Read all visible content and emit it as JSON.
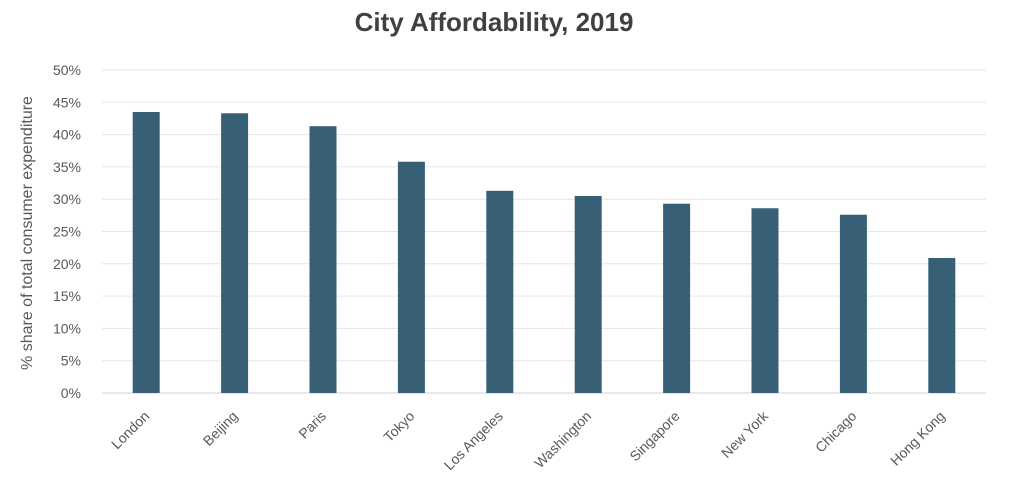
{
  "chart_data": {
    "type": "bar",
    "title": "City Affordability, 2019",
    "xlabel": "",
    "ylabel": "% share of total consumer expenditure",
    "categories": [
      "London",
      "Beijing",
      "Paris",
      "Tokyo",
      "Los Angeles",
      "Washington",
      "Singapore",
      "New York",
      "Chicago",
      "Hong Kong"
    ],
    "values": [
      43.5,
      43.3,
      41.3,
      35.8,
      31.3,
      30.5,
      29.3,
      28.6,
      27.6,
      20.9
    ],
    "y_ticks": [
      "0%",
      "5%",
      "10%",
      "15%",
      "20%",
      "25%",
      "30%",
      "35%",
      "40%",
      "45%",
      "50%"
    ],
    "ylim": [
      0,
      50
    ],
    "grid": true,
    "bar_color": "#376077"
  }
}
